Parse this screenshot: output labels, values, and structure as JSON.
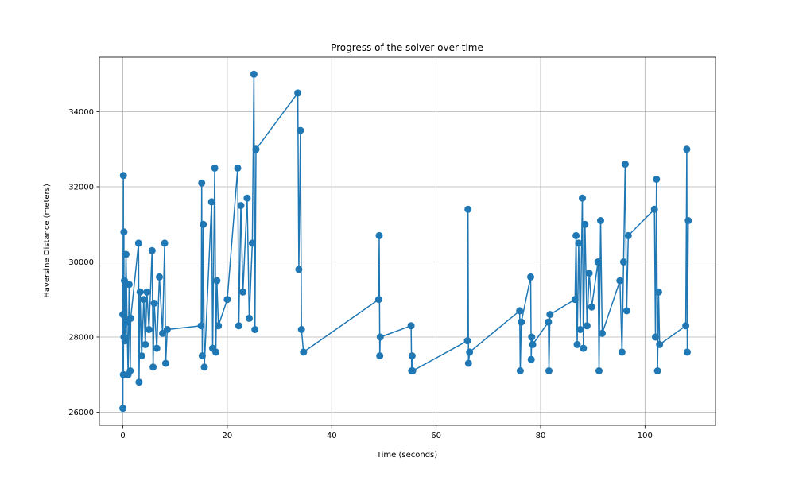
{
  "chart_data": {
    "type": "line",
    "title": "Progress of the solver over time",
    "xlabel": "Time (seconds)",
    "ylabel": "Haversine Distance (meters)",
    "xlim": [
      -4.5,
      113.5
    ],
    "ylim": [
      25650,
      35450
    ],
    "xticks": [
      "0",
      "20",
      "40",
      "60",
      "80",
      "100"
    ],
    "yticks": [
      "26000",
      "28000",
      "30000",
      "32000",
      "34000"
    ],
    "grid": true,
    "markers": true,
    "color": "#1f77b4",
    "series": [
      {
        "values_description": "",
        "points": [
          [
            0.0,
            26100
          ],
          [
            0.0,
            28600
          ],
          [
            0.1,
            32300
          ],
          [
            0.1,
            27000
          ],
          [
            0.2,
            30800
          ],
          [
            0.2,
            28000
          ],
          [
            0.3,
            29500
          ],
          [
            0.4,
            27900
          ],
          [
            0.6,
            30200
          ],
          [
            0.8,
            28400
          ],
          [
            1.0,
            27000
          ],
          [
            1.2,
            29400
          ],
          [
            1.4,
            27100
          ],
          [
            1.5,
            28500
          ],
          [
            3.0,
            30500
          ],
          [
            3.1,
            26800
          ],
          [
            3.3,
            29200
          ],
          [
            3.6,
            27500
          ],
          [
            4.0,
            29000
          ],
          [
            4.3,
            27800
          ],
          [
            4.6,
            29200
          ],
          [
            5.0,
            28200
          ],
          [
            5.6,
            30300
          ],
          [
            5.8,
            27200
          ],
          [
            6.0,
            28900
          ],
          [
            6.5,
            27700
          ],
          [
            7.0,
            29600
          ],
          [
            7.6,
            28100
          ],
          [
            8.0,
            30500
          ],
          [
            8.2,
            27300
          ],
          [
            8.5,
            28200
          ],
          [
            15.0,
            28300
          ],
          [
            15.1,
            32100
          ],
          [
            15.2,
            27500
          ],
          [
            15.4,
            31000
          ],
          [
            15.6,
            27200
          ],
          [
            17.0,
            31600
          ],
          [
            17.2,
            27700
          ],
          [
            17.6,
            32500
          ],
          [
            17.8,
            27600
          ],
          [
            18.0,
            29500
          ],
          [
            18.3,
            28300
          ],
          [
            20.0,
            29000
          ],
          [
            22.0,
            32500
          ],
          [
            22.2,
            28300
          ],
          [
            22.6,
            31500
          ],
          [
            23.0,
            29200
          ],
          [
            23.8,
            31700
          ],
          [
            24.2,
            28500
          ],
          [
            24.8,
            30500
          ],
          [
            25.1,
            35000
          ],
          [
            25.3,
            28200
          ],
          [
            25.5,
            33000
          ],
          [
            33.5,
            34500
          ],
          [
            33.7,
            29800
          ],
          [
            34.0,
            33500
          ],
          [
            34.2,
            28200
          ],
          [
            34.6,
            27600
          ],
          [
            49.0,
            29000
          ],
          [
            49.1,
            30700
          ],
          [
            49.2,
            27500
          ],
          [
            49.3,
            28000
          ],
          [
            55.2,
            28300
          ],
          [
            55.3,
            27100
          ],
          [
            55.4,
            27500
          ],
          [
            55.5,
            27100
          ],
          [
            66.0,
            27900
          ],
          [
            66.1,
            31400
          ],
          [
            66.2,
            27300
          ],
          [
            66.4,
            27600
          ],
          [
            76.0,
            28700
          ],
          [
            76.1,
            27100
          ],
          [
            76.3,
            28400
          ],
          [
            78.1,
            29600
          ],
          [
            78.2,
            27400
          ],
          [
            78.3,
            28000
          ],
          [
            78.5,
            27800
          ],
          [
            81.5,
            28400
          ],
          [
            81.6,
            27100
          ],
          [
            81.8,
            28600
          ],
          [
            86.6,
            29000
          ],
          [
            86.8,
            30700
          ],
          [
            87.0,
            27800
          ],
          [
            87.3,
            30500
          ],
          [
            87.6,
            28200
          ],
          [
            88.0,
            31700
          ],
          [
            88.2,
            27700
          ],
          [
            88.5,
            31000
          ],
          [
            88.9,
            28300
          ],
          [
            89.3,
            29700
          ],
          [
            89.8,
            28800
          ],
          [
            91.0,
            30000
          ],
          [
            91.2,
            27100
          ],
          [
            91.5,
            31100
          ],
          [
            91.8,
            28100
          ],
          [
            95.2,
            29500
          ],
          [
            95.6,
            27600
          ],
          [
            95.9,
            30000
          ],
          [
            96.2,
            32600
          ],
          [
            96.5,
            28700
          ],
          [
            96.8,
            30700
          ],
          [
            101.8,
            31400
          ],
          [
            102.0,
            28000
          ],
          [
            102.2,
            32200
          ],
          [
            102.4,
            27100
          ],
          [
            102.6,
            29200
          ],
          [
            102.8,
            27800
          ],
          [
            107.8,
            28300
          ],
          [
            108.0,
            33000
          ],
          [
            108.1,
            27600
          ],
          [
            108.3,
            31100
          ]
        ]
      }
    ]
  }
}
